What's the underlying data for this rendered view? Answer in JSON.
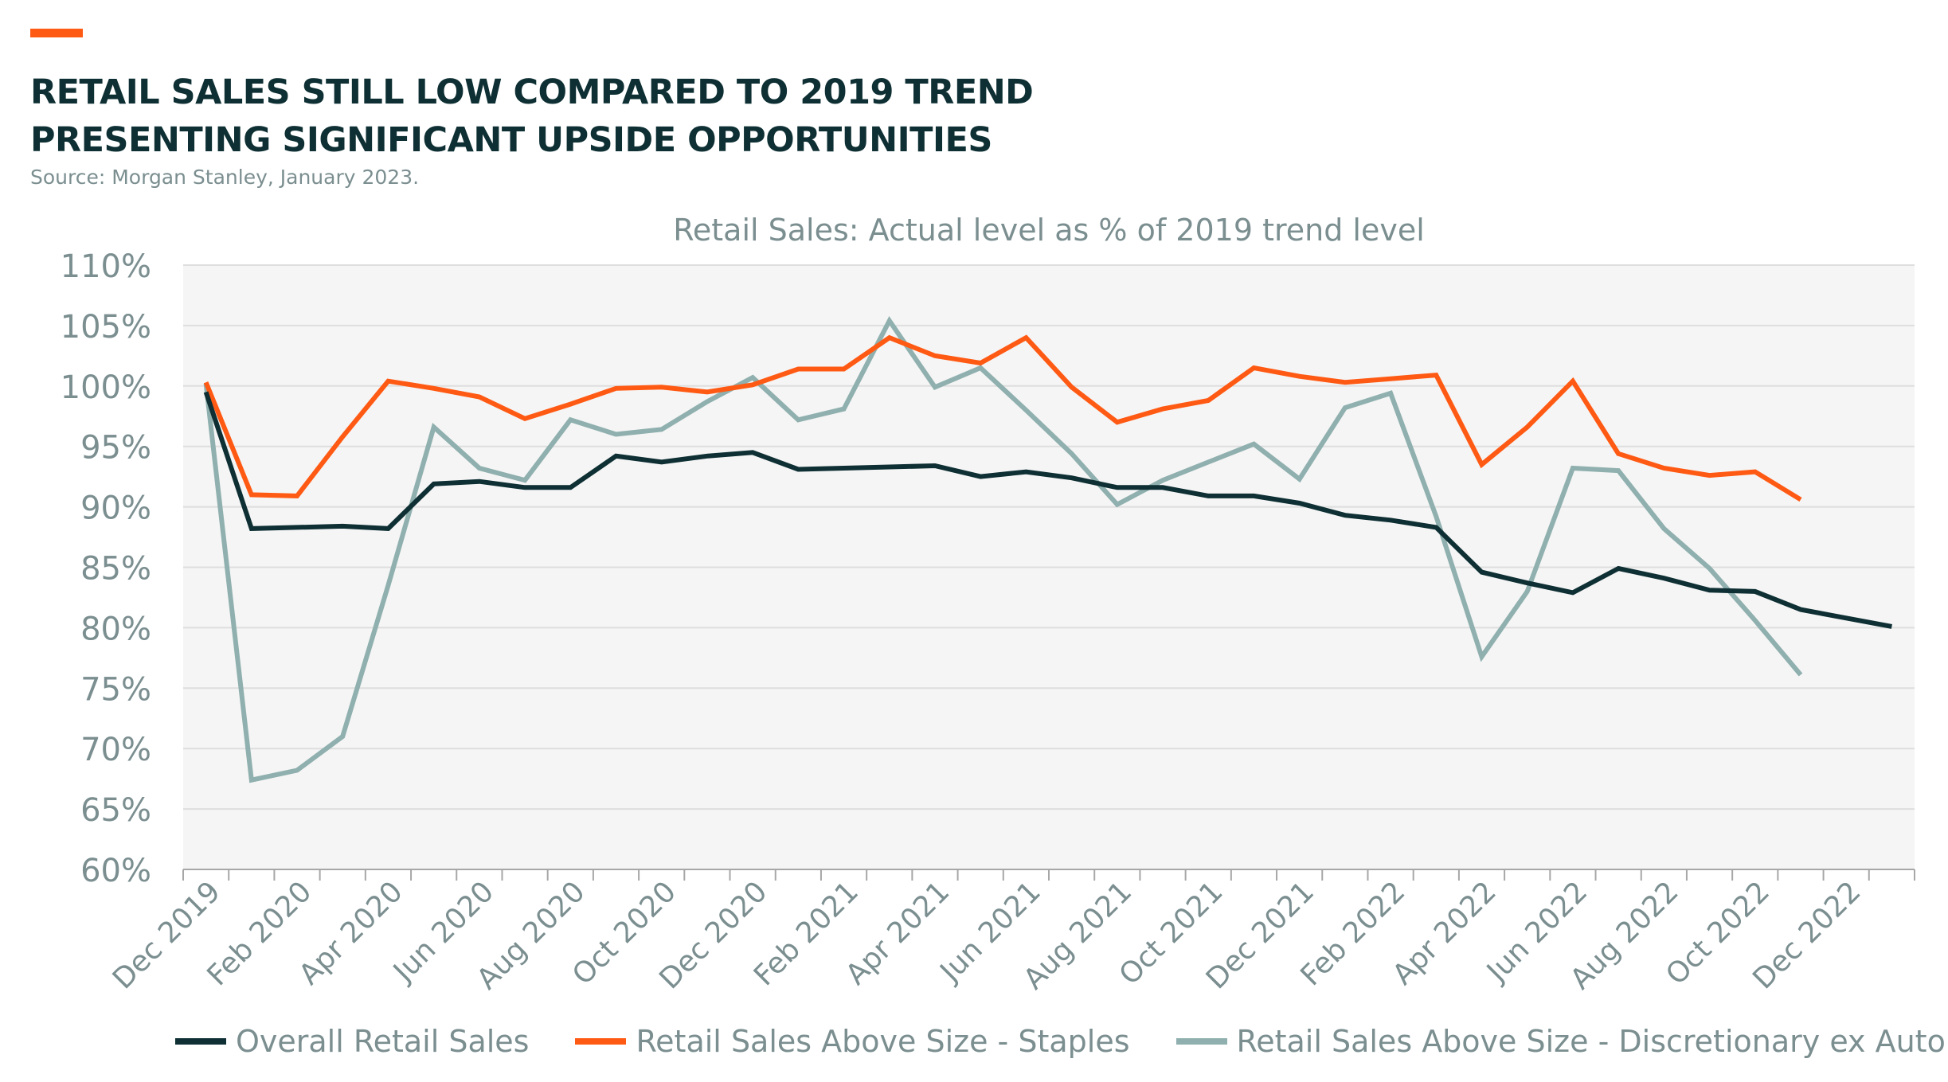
{
  "header": {
    "title_line1": "RETAIL SALES STILL LOW COMPARED TO 2019 TREND",
    "title_line2": "PRESENTING SIGNIFICANT UPSIDE OPPORTUNITIES",
    "source": "Source: Morgan Stanley, January 2023."
  },
  "colors": {
    "accent": "#ff5a14",
    "overall": "#0e2f33",
    "staples": "#ff5a14",
    "discretionary": "#8fb0ae",
    "plot_background": "#f5f5f5",
    "grid": "#dedede"
  },
  "chart_data": {
    "type": "line",
    "title": "Retail Sales: Actual level as % of 2019 trend level",
    "ylim": [
      60,
      110
    ],
    "y_ticks": [
      "60%",
      "65%",
      "70%",
      "75%",
      "80%",
      "85%",
      "90%",
      "95%",
      "100%",
      "105%",
      "110%"
    ],
    "x_tick_labels": [
      "Dec 2019",
      "Feb 2020",
      "Apr 2020",
      "Jun 2020",
      "Aug 2020",
      "Oct 2020",
      "Dec 2020",
      "Feb 2021",
      "Apr 2021",
      "Jun 2021",
      "Aug 2021",
      "Oct 2021",
      "Dec 2021",
      "Feb 2022",
      "Apr 2022",
      "Jun 2022",
      "Aug 2022",
      "Oct 2022",
      "Dec 2022"
    ],
    "grid": true,
    "legend_position": "bottom",
    "series": [
      {
        "name": "Overall Retail Sales",
        "color_key": "overall",
        "values": [
          99.5,
          88.2,
          88.3,
          88.4,
          88.2,
          91.9,
          92.1,
          91.6,
          91.6,
          94.2,
          93.7,
          94.2,
          94.5,
          93.1,
          93.2,
          93.3,
          93.4,
          92.5,
          92.9,
          92.4,
          91.6,
          91.6,
          90.9,
          90.9,
          90.3,
          89.3,
          88.9,
          88.3,
          84.6,
          83.7,
          82.9,
          84.9,
          84.1,
          83.1,
          83.0,
          81.5,
          80.8,
          80.1
        ],
        "start_index": 0
      },
      {
        "name": "Retail Sales Above Size - Staples",
        "color_key": "staples",
        "values": [
          100.3,
          91.0,
          90.9,
          95.8,
          100.4,
          99.8,
          99.1,
          97.3,
          98.5,
          99.8,
          99.9,
          99.5,
          100.1,
          101.4,
          101.4,
          104.0,
          102.5,
          101.9,
          104.0,
          99.9,
          97.0,
          98.1,
          98.8,
          101.5,
          100.8,
          100.3,
          100.6,
          100.9,
          93.5,
          96.6,
          100.4,
          94.4,
          93.2,
          92.6,
          92.9,
          90.6
        ],
        "start_index": 0
      },
      {
        "name": "Retail Sales Above Size - Discretionary ex Auto",
        "color_key": "discretionary",
        "values": [
          100.2,
          67.4,
          68.2,
          71.0,
          83.5,
          96.6,
          93.2,
          92.2,
          97.2,
          96.0,
          96.4,
          98.7,
          100.7,
          97.2,
          98.1,
          105.4,
          99.9,
          101.5,
          98.0,
          94.4,
          90.2,
          92.2,
          93.7,
          95.2,
          92.3,
          98.2,
          99.4,
          89.2,
          77.6,
          83.0,
          93.2,
          93.0,
          88.2,
          84.9,
          80.6,
          76.1
        ],
        "start_index": 0
      }
    ]
  },
  "legend": {
    "items": [
      {
        "label": "Overall Retail Sales",
        "color_key": "overall"
      },
      {
        "label": "Retail Sales Above Size - Staples",
        "color_key": "staples"
      },
      {
        "label": "Retail Sales Above Size - Discretionary ex Auto",
        "color_key": "discretionary"
      }
    ]
  }
}
